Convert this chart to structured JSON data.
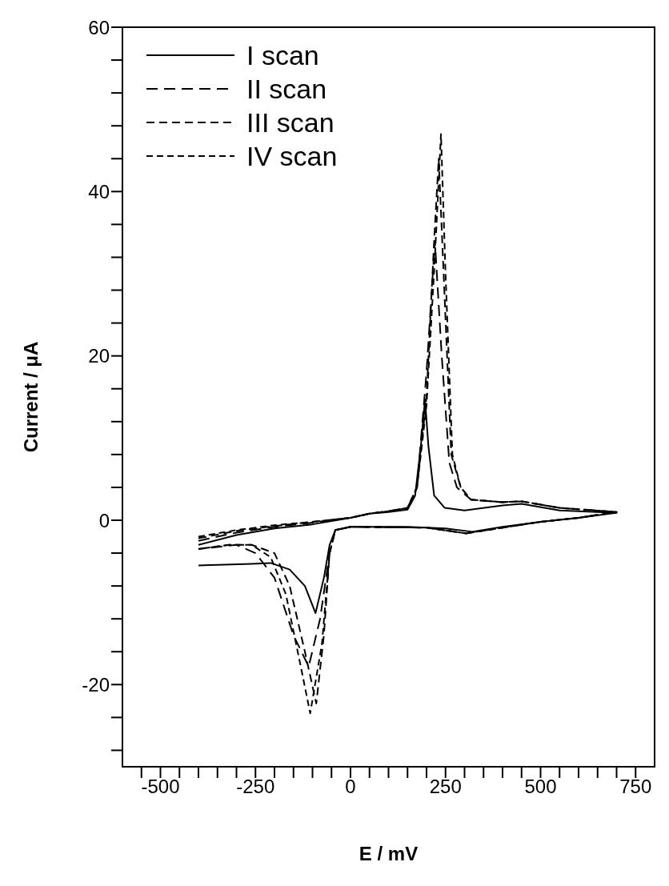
{
  "chart_data": {
    "type": "line",
    "xlabel": "E / mV",
    "ylabel": "Current / μA",
    "xlim": [
      -600,
      800
    ],
    "ylim": [
      -30,
      60
    ],
    "xticks": [
      {
        "value": -550,
        "label": null
      },
      -500,
      {
        "value": -450,
        "label": null
      },
      {
        "value": -400,
        "label": null
      },
      {
        "value": -350,
        "label": null
      },
      {
        "value": -300,
        "label": null
      },
      -250,
      {
        "value": -200,
        "label": null
      },
      {
        "value": -150,
        "label": null
      },
      {
        "value": -100,
        "label": null
      },
      {
        "value": -50,
        "label": null
      },
      0,
      {
        "value": 50,
        "label": null
      },
      {
        "value": 100,
        "label": null
      },
      {
        "value": 150,
        "label": null
      },
      {
        "value": 200,
        "label": null
      },
      250,
      {
        "value": 300,
        "label": null
      },
      {
        "value": 350,
        "label": null
      },
      {
        "value": 400,
        "label": null
      },
      {
        "value": 450,
        "label": null
      },
      500,
      {
        "value": 550,
        "label": null
      },
      {
        "value": 600,
        "label": null
      },
      {
        "value": 650,
        "label": null
      },
      {
        "value": 700,
        "label": null
      },
      750
    ],
    "yticks": [
      {
        "value": -28,
        "label": null
      },
      {
        "value": -24,
        "label": null
      },
      -20,
      {
        "value": -16,
        "label": null
      },
      {
        "value": -12,
        "label": null
      },
      {
        "value": -8,
        "label": null
      },
      {
        "value": -4,
        "label": null
      },
      0,
      {
        "value": 4,
        "label": null
      },
      {
        "value": 8,
        "label": null
      },
      {
        "value": 12,
        "label": null
      },
      {
        "value": 16,
        "label": null
      },
      20,
      {
        "value": 24,
        "label": null
      },
      {
        "value": 28,
        "label": null
      },
      {
        "value": 32,
        "label": null
      },
      {
        "value": 36,
        "label": null
      },
      40,
      {
        "value": 44,
        "label": null
      },
      {
        "value": 48,
        "label": null
      },
      {
        "value": 52,
        "label": null
      },
      {
        "value": 56,
        "label": null
      },
      60
    ],
    "legend": "top left",
    "marker": "none",
    "series": [
      {
        "name": "I scan",
        "color": "#000000",
        "line_style": "solid",
        "x": [
          -400,
          -300,
          -200,
          -100,
          0,
          50,
          100,
          150,
          170,
          185,
          196,
          205,
          220,
          248,
          300,
          400,
          450,
          550,
          700,
          600,
          500,
          400,
          320,
          250,
          150,
          0,
          -40,
          -55,
          -70,
          -92,
          -120,
          -160,
          -210,
          -260,
          -330,
          -400
        ],
        "values": [
          -3,
          -1.8,
          -1,
          -0.5,
          0.3,
          0.8,
          1,
          1.3,
          3,
          9,
          14.7,
          9,
          3,
          1.5,
          1.2,
          1.8,
          2,
          1.2,
          0.9,
          0.3,
          -0.2,
          -0.8,
          -1.4,
          -1,
          -0.8,
          -0.8,
          -1.2,
          -3,
          -7,
          -11.3,
          -8,
          -6,
          -5.2,
          -5.3,
          -5.4,
          -5.5
        ]
      },
      {
        "name": "II scan",
        "color": "#000000",
        "line_style": "dashed",
        "x": [
          -400,
          -300,
          -200,
          -100,
          0,
          50,
          100,
          150,
          175,
          200,
          222,
          240,
          260,
          280,
          317,
          400,
          450,
          550,
          700,
          600,
          500,
          400,
          304,
          200,
          0,
          -40,
          -55,
          -80,
          -110,
          -150,
          -200,
          -250,
          -300,
          -400
        ],
        "values": [
          -2.5,
          -1.5,
          -0.8,
          -0.3,
          0.3,
          0.8,
          1.1,
          1.5,
          4,
          18,
          34,
          20,
          7,
          4,
          2.5,
          2.2,
          2.3,
          1.5,
          1,
          0.3,
          -0.2,
          -0.9,
          -1.6,
          -0.9,
          -0.8,
          -1.2,
          -4,
          -12,
          -17.8,
          -14,
          -7,
          -4,
          -3,
          -3.5
        ]
      },
      {
        "name": "III scan",
        "color": "#000000",
        "line_style": "dashed",
        "x": [
          -400,
          -300,
          -200,
          -100,
          0,
          50,
          100,
          150,
          175,
          200,
          220,
          232,
          245,
          265,
          290,
          317,
          400,
          450,
          550,
          700,
          600,
          500,
          400,
          304,
          200,
          0,
          -40,
          -55,
          -70,
          -90,
          -120,
          -160,
          -200,
          -260,
          -320,
          -400
        ],
        "values": [
          -2.2,
          -1.3,
          -0.7,
          -0.2,
          0.3,
          0.8,
          1.1,
          1.5,
          4,
          15,
          34,
          44,
          30,
          8,
          4,
          2.5,
          2.2,
          2.3,
          1.5,
          1,
          0.3,
          -0.2,
          -0.9,
          -1.6,
          -0.9,
          -0.8,
          -1.2,
          -4,
          -14,
          -22.3,
          -16,
          -8,
          -4,
          -3,
          -3,
          -3.5
        ]
      },
      {
        "name": "IV scan",
        "color": "#000000",
        "line_style": "dashed",
        "x": [
          -400,
          -300,
          -200,
          -100,
          0,
          50,
          100,
          150,
          175,
          200,
          222,
          238,
          250,
          268,
          290,
          317,
          400,
          450,
          550,
          700,
          600,
          500,
          400,
          304,
          200,
          0,
          -40,
          -55,
          -75,
          -106,
          -130,
          -170,
          -210,
          -260,
          -320,
          -400
        ],
        "values": [
          -2,
          -1.2,
          -0.6,
          -0.2,
          0.3,
          0.8,
          1.1,
          1.5,
          4,
          14,
          32,
          47,
          30,
          8,
          4,
          2.5,
          2.2,
          2.3,
          1.5,
          1,
          0.3,
          -0.2,
          -0.9,
          -1.6,
          -0.9,
          -0.8,
          -1.2,
          -4,
          -15,
          -23.5,
          -18,
          -9,
          -4.5,
          -3,
          -3,
          -3.5
        ]
      }
    ]
  }
}
